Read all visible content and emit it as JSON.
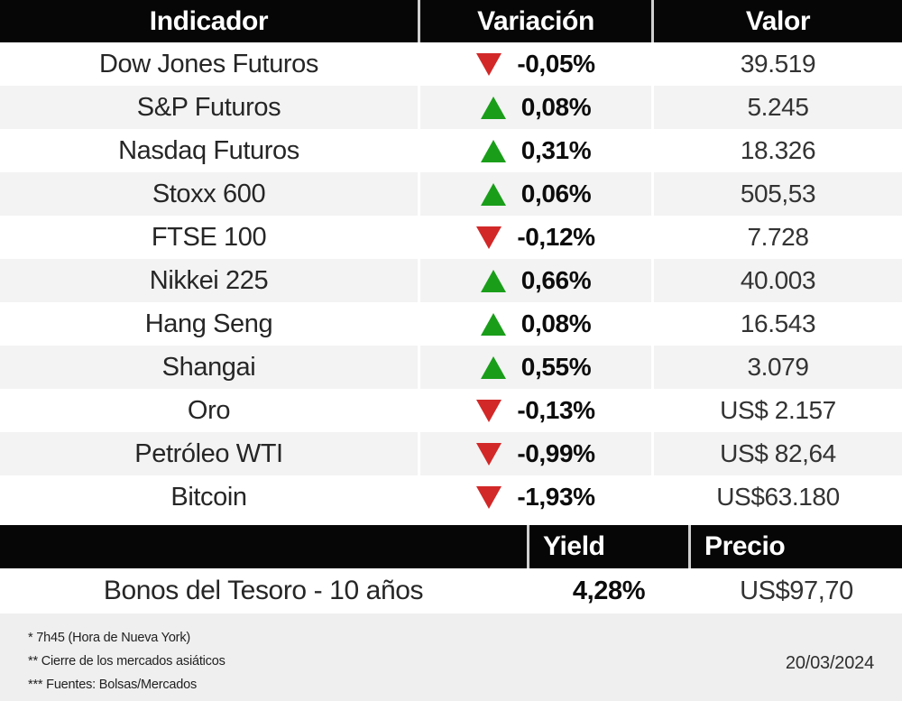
{
  "table_main": {
    "headers": [
      "Indicador",
      "Variación",
      "Valor"
    ],
    "rows": [
      {
        "indicator": "Dow Jones Futuros",
        "direction": "down",
        "variation": "-0,05%",
        "value": "39.519"
      },
      {
        "indicator": "S&P Futuros",
        "direction": "up",
        "variation": "0,08%",
        "value": "5.245"
      },
      {
        "indicator": "Nasdaq Futuros",
        "direction": "up",
        "variation": "0,31%",
        "value": "18.326"
      },
      {
        "indicator": "Stoxx 600",
        "direction": "up",
        "variation": "0,06%",
        "value": "505,53"
      },
      {
        "indicator": "FTSE 100",
        "direction": "down",
        "variation": "-0,12%",
        "value": "7.728"
      },
      {
        "indicator": "Nikkei 225",
        "direction": "up",
        "variation": "0,66%",
        "value": "40.003"
      },
      {
        "indicator": "Hang Seng",
        "direction": "up",
        "variation": "0,08%",
        "value": "16.543"
      },
      {
        "indicator": "Shangai",
        "direction": "up",
        "variation": "0,55%",
        "value": "3.079"
      },
      {
        "indicator": "Oro",
        "direction": "down",
        "variation": "-0,13%",
        "value": "US$ 2.157"
      },
      {
        "indicator": "Petróleo WTI",
        "direction": "down",
        "variation": "-0,99%",
        "value": "US$ 82,64"
      },
      {
        "indicator": "Bitcoin",
        "direction": "down",
        "variation": "-1,93%",
        "value": "US$63.180"
      }
    ]
  },
  "table_bonds": {
    "headers": [
      "",
      "Yield",
      "Precio"
    ],
    "rows": [
      {
        "indicator": "Bonos del Tesoro - 10 años",
        "yield": "4,28%",
        "price": "US$97,70"
      }
    ]
  },
  "footer": {
    "notes": [
      "* 7h45 (Hora de Nueva York)",
      "** Cierre de los mercados asiáticos",
      "*** Fuentes: Bolsas/Mercados"
    ],
    "date": "20/03/2024"
  },
  "colors": {
    "up": "#1a9e1a",
    "down": "#d22828",
    "header_bg": "#060606",
    "stripe": "#f3f3f3",
    "footer_bg": "#efefef"
  }
}
